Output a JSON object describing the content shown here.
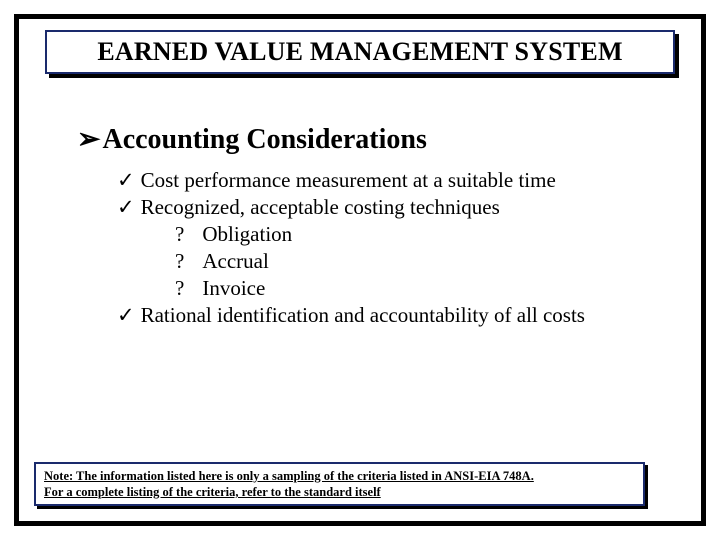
{
  "title": "EARNED VALUE MANAGEMENT SYSTEM",
  "heading": "Accounting Considerations",
  "items": {
    "check1": "Cost performance measurement at a suitable time",
    "check2": "Recognized, acceptable costing techniques",
    "sub1": "Obligation",
    "sub2": "Accrual",
    "sub3": "Invoice",
    "check3": "Rational identification and accountability of all costs"
  },
  "note": {
    "line1": "Note: The information listed here is only a sampling of the criteria listed in ANSI-EIA 748A.",
    "line2": "For a complete listing of the criteria, refer to the standard itself"
  },
  "colors": {
    "border_dark": "#000000",
    "border_accent": "#1a2a6c",
    "background": "#ffffff",
    "text": "#000000"
  }
}
